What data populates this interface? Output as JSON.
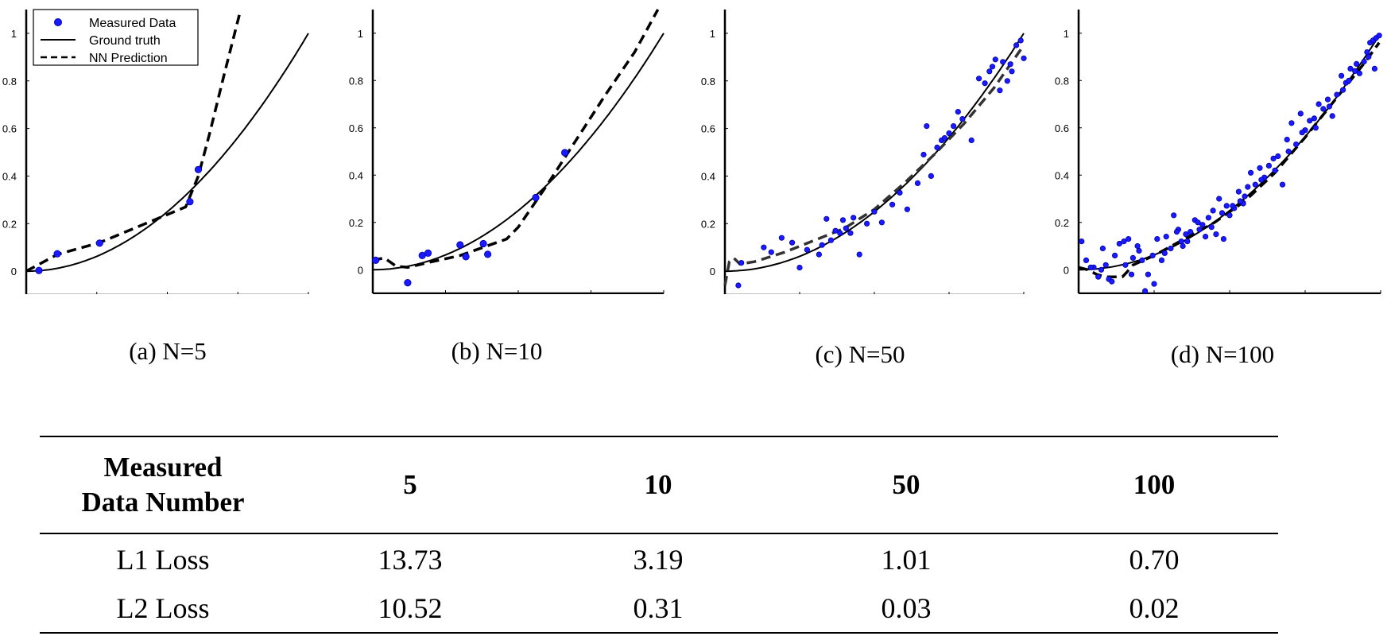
{
  "chart_data": [
    {
      "type": "scatter",
      "caption": "(a) N=5",
      "xlim": [
        0,
        20
      ],
      "ylim": [
        -0.1,
        1.1
      ],
      "xticks": [
        0,
        5,
        10,
        15,
        20
      ],
      "yticks": [
        0,
        0.2,
        0.4,
        0.6,
        0.8,
        1
      ],
      "legend": {
        "placement": "top-left",
        "entries": [
          "Measured Data",
          "Ground truth",
          "NN Prediction"
        ]
      },
      "series": [
        {
          "name": "Measured Data",
          "style": "marker",
          "x": [
            0.9,
            2.2,
            5.2,
            11.6,
            12.2
          ],
          "y": [
            0.003,
            0.073,
            0.118,
            0.292,
            0.427
          ]
        },
        {
          "name": "Ground truth",
          "style": "solid",
          "function": "y = (x/20)^2"
        },
        {
          "name": "NN Prediction",
          "style": "dashed",
          "x": [
            0,
            2.2,
            5.2,
            11.3,
            12.2,
            13.0,
            14.0,
            15.2
          ],
          "y": [
            0,
            0.07,
            0.12,
            0.27,
            0.4,
            0.58,
            0.82,
            1.1
          ]
        }
      ]
    },
    {
      "type": "scatter",
      "caption": "(b) N=10",
      "xlim": [
        0,
        20
      ],
      "ylim": [
        -0.1,
        1.1
      ],
      "xticks": [
        0,
        5,
        10,
        15,
        20
      ],
      "yticks": [
        0,
        0.2,
        0.4,
        0.6,
        0.8,
        1
      ],
      "series": [
        {
          "name": "Measured Data",
          "style": "marker",
          "x": [
            0.2,
            2.4,
            3.4,
            3.8,
            6.0,
            6.4,
            7.6,
            7.9,
            11.2,
            13.2
          ],
          "y": [
            0.04,
            -0.055,
            0.06,
            0.07,
            0.105,
            0.055,
            0.11,
            0.065,
            0.305,
            0.495
          ]
        },
        {
          "name": "Ground truth",
          "style": "solid",
          "function": "y = (x/20)^2"
        },
        {
          "name": "NN Prediction",
          "style": "dashed",
          "x": [
            0,
            0.8,
            1.6,
            2.4,
            3.8,
            6.0,
            9.2,
            10.0,
            12.0,
            14.0,
            16.0,
            18.0,
            19.6
          ],
          "y": [
            0.04,
            0.05,
            0.015,
            0.01,
            0.03,
            0.06,
            0.13,
            0.18,
            0.36,
            0.55,
            0.74,
            0.92,
            1.1
          ]
        }
      ]
    },
    {
      "type": "scatter",
      "caption": "(c) N=50",
      "xlim": [
        0,
        20
      ],
      "ylim": [
        -0.1,
        1.1
      ],
      "xticks": [
        0,
        5,
        10,
        15,
        20
      ],
      "yticks": [
        0,
        0.2,
        0.4,
        0.6,
        0.8,
        1
      ],
      "series": [
        {
          "name": "Measured Data",
          "style": "marker",
          "x": [
            0.9,
            1.1,
            2.6,
            3.1,
            3.8,
            4.5,
            5.0,
            5.5,
            6.3,
            6.5,
            6.8,
            7.1,
            7.4,
            7.7,
            7.9,
            8.1,
            8.4,
            8.6,
            9.0,
            9.5,
            10.0,
            10.5,
            11.2,
            11.7,
            12.2,
            12.9,
            13.3,
            13.5,
            13.8,
            14.2,
            14.5,
            14.7,
            15.0,
            15.3,
            15.6,
            15.9,
            16.5,
            17.0,
            17.4,
            17.7,
            17.9,
            18.1,
            18.4,
            18.6,
            18.9,
            19.2,
            19.5,
            19.8,
            20.0,
            19.1
          ],
          "y": [
            -0.06,
            0.035,
            0.1,
            0.08,
            0.14,
            0.12,
            0.015,
            0.09,
            0.07,
            0.11,
            0.22,
            0.13,
            0.17,
            0.16,
            0.215,
            0.18,
            0.16,
            0.225,
            0.07,
            0.2,
            0.25,
            0.205,
            0.28,
            0.33,
            0.26,
            0.37,
            0.49,
            0.61,
            0.4,
            0.52,
            0.55,
            0.56,
            0.58,
            0.61,
            0.67,
            0.64,
            0.55,
            0.81,
            0.79,
            0.84,
            0.86,
            0.89,
            0.76,
            0.88,
            0.8,
            0.84,
            0.95,
            0.97,
            0.895,
            0.87
          ]
        },
        {
          "name": "Ground truth",
          "style": "solid",
          "function": "y = (x/20)^2"
        },
        {
          "name": "NN Prediction",
          "style": "dashed",
          "x": [
            0,
            0.3,
            0.6,
            1.0,
            2.0,
            4.0,
            6.0,
            8.0,
            10.0,
            12.0,
            14.0,
            16.0,
            18.0,
            20.0
          ],
          "y": [
            -0.06,
            0.04,
            0.055,
            0.03,
            0.04,
            0.08,
            0.13,
            0.18,
            0.26,
            0.37,
            0.49,
            0.62,
            0.77,
            0.95
          ]
        }
      ]
    },
    {
      "type": "scatter",
      "caption": "(d) N=100",
      "xlim": [
        0,
        20
      ],
      "ylim": [
        -0.1,
        1.1
      ],
      "xticks": [
        0,
        5,
        10,
        15,
        20
      ],
      "yticks": [
        0,
        0.2,
        0.4,
        0.6,
        0.8,
        1
      ],
      "series": [
        {
          "name": "Measured Data",
          "style": "marker",
          "x": [
            0.2,
            0.5,
            1.0,
            1.3,
            1.6,
            1.8,
            2.0,
            2.4,
            2.7,
            3.0,
            3.3,
            3.6,
            3.9,
            4.2,
            4.6,
            4.9,
            5.2,
            5.5,
            5.8,
            6.1,
            6.3,
            6.6,
            6.8,
            7.1,
            7.4,
            7.7,
            8.0,
            8.2,
            8.4,
            8.6,
            8.9,
            9.1,
            9.3,
            9.6,
            9.8,
            10.0,
            10.3,
            10.6,
            10.9,
            11.2,
            11.4,
            11.7,
            12.0,
            12.3,
            12.6,
            12.9,
            13.2,
            13.5,
            13.8,
            14.1,
            14.4,
            14.7,
            15.0,
            15.3,
            15.6,
            15.9,
            16.2,
            16.5,
            16.8,
            17.1,
            17.4,
            17.7,
            18.0,
            18.3,
            18.6,
            18.9,
            19.1,
            19.3,
            19.5,
            19.7,
            19.9,
            0.8,
            2.2,
            3.1,
            4.0,
            4.4,
            5.0,
            5.7,
            6.5,
            7.2,
            7.9,
            8.8,
            9.5,
            10.2,
            11.0,
            12.1,
            13.0,
            13.9,
            14.8,
            15.7,
            16.6,
            17.5,
            18.4,
            19.2,
            19.6,
            1.5,
            3.5,
            6.9,
            10.7,
            17.9
          ],
          "y": [
            0.12,
            0.04,
            0.01,
            -0.03,
            0.09,
            0.02,
            -0.04,
            0.06,
            0.11,
            0.12,
            0.13,
            0.05,
            0.1,
            0.04,
            -0.02,
            0.06,
            0.13,
            0.04,
            0.14,
            0.09,
            0.23,
            0.17,
            0.12,
            0.15,
            0.16,
            0.21,
            0.17,
            0.19,
            0.14,
            0.22,
            0.25,
            0.15,
            0.3,
            0.13,
            0.27,
            0.23,
            0.26,
            0.33,
            0.28,
            0.35,
            0.41,
            0.36,
            0.43,
            0.39,
            0.44,
            0.47,
            0.48,
            0.36,
            0.55,
            0.62,
            0.53,
            0.66,
            0.59,
            0.63,
            0.64,
            0.7,
            0.68,
            0.72,
            0.65,
            0.74,
            0.82,
            0.79,
            0.85,
            0.84,
            0.83,
            0.88,
            0.92,
            0.96,
            0.97,
            0.98,
            0.99,
            0.01,
            -0.05,
            0.02,
            0.08,
            -0.09,
            -0.06,
            0.07,
            0.16,
            0.12,
            0.2,
            0.18,
            0.24,
            0.27,
            0.31,
            0.38,
            0.42,
            0.5,
            0.58,
            0.6,
            0.69,
            0.76,
            0.87,
            0.9,
            0.85,
            0.0,
            -0.02,
            0.1,
            0.29,
            0.8
          ]
        },
        {
          "name": "Ground truth",
          "style": "solid",
          "function": "y = (x/20)^2"
        },
        {
          "name": "NN Prediction",
          "style": "dashed",
          "x": [
            0,
            0.6,
            1.2,
            1.8,
            2.4,
            2.9,
            3.2,
            3.6,
            5.0,
            7.0,
            9.0,
            11.0,
            13.0,
            15.0,
            17.0,
            19.0,
            19.9
          ],
          "y": [
            0.01,
            0.0,
            -0.02,
            -0.03,
            -0.03,
            -0.03,
            -0.01,
            0.02,
            0.06,
            0.13,
            0.2,
            0.29,
            0.41,
            0.56,
            0.72,
            0.88,
            0.96
          ]
        }
      ]
    }
  ],
  "table": {
    "header": [
      "Measured\nData Number",
      "5",
      "10",
      "50",
      "100"
    ],
    "rows": [
      [
        "L1 Loss",
        "13.73",
        "3.19",
        "1.01",
        "0.70"
      ],
      [
        "L2 Loss",
        "10.52",
        "0.31",
        "0.03",
        "0.02"
      ]
    ]
  }
}
